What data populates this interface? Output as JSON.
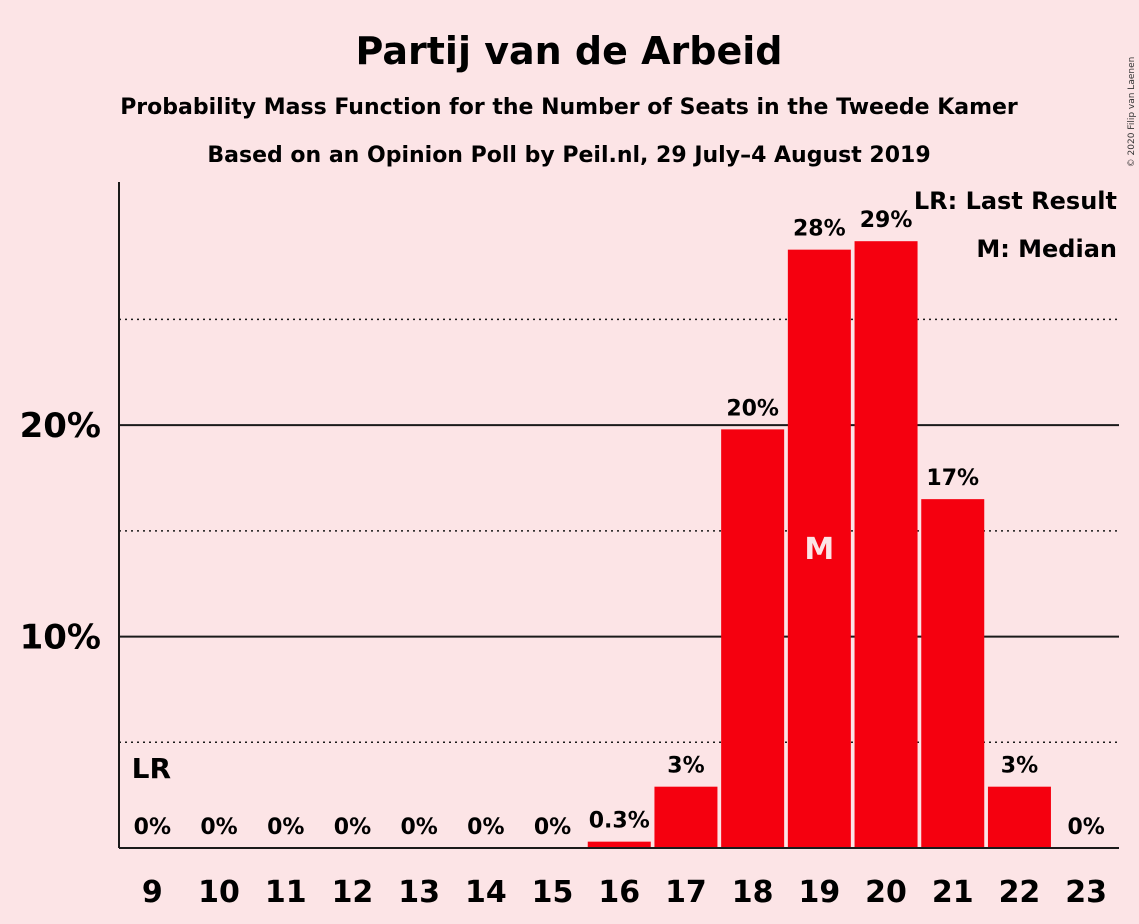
{
  "chart_data": {
    "type": "bar",
    "title": "Partij van de Arbeid",
    "subtitle": "Probability Mass Function for the Number of Seats in the Tweede Kamer",
    "subtitle2": "Based on an Opinion Poll by Peil.nl, 29 July–4 August 2019",
    "copyright": "© 2020 Filip van Laenen",
    "categories": [
      "9",
      "10",
      "11",
      "12",
      "13",
      "14",
      "15",
      "16",
      "17",
      "18",
      "19",
      "20",
      "21",
      "22",
      "23"
    ],
    "values": [
      0,
      0,
      0,
      0,
      0,
      0,
      0,
      0.3,
      2.9,
      19.8,
      28.3,
      28.7,
      16.5,
      2.9,
      0
    ],
    "data_labels": [
      "0%",
      "0%",
      "0%",
      "0%",
      "0%",
      "0%",
      "0%",
      "0.3%",
      "3%",
      "20%",
      "28%",
      "29%",
      "17%",
      "3%",
      "0%"
    ],
    "ylim": [
      0,
      31.5
    ],
    "y_ticks": [
      {
        "value": 10,
        "label": "10%"
      },
      {
        "value": 20,
        "label": "20%"
      }
    ],
    "y_minor_gridlines": [
      5,
      15,
      25
    ],
    "last_result": {
      "category": "9",
      "label": "LR"
    },
    "median": {
      "category": "19",
      "label": "M"
    },
    "legend": [
      "LR: Last Result",
      "M: Median"
    ],
    "legend_position": "top-right",
    "bar_color": "#f5000f"
  }
}
